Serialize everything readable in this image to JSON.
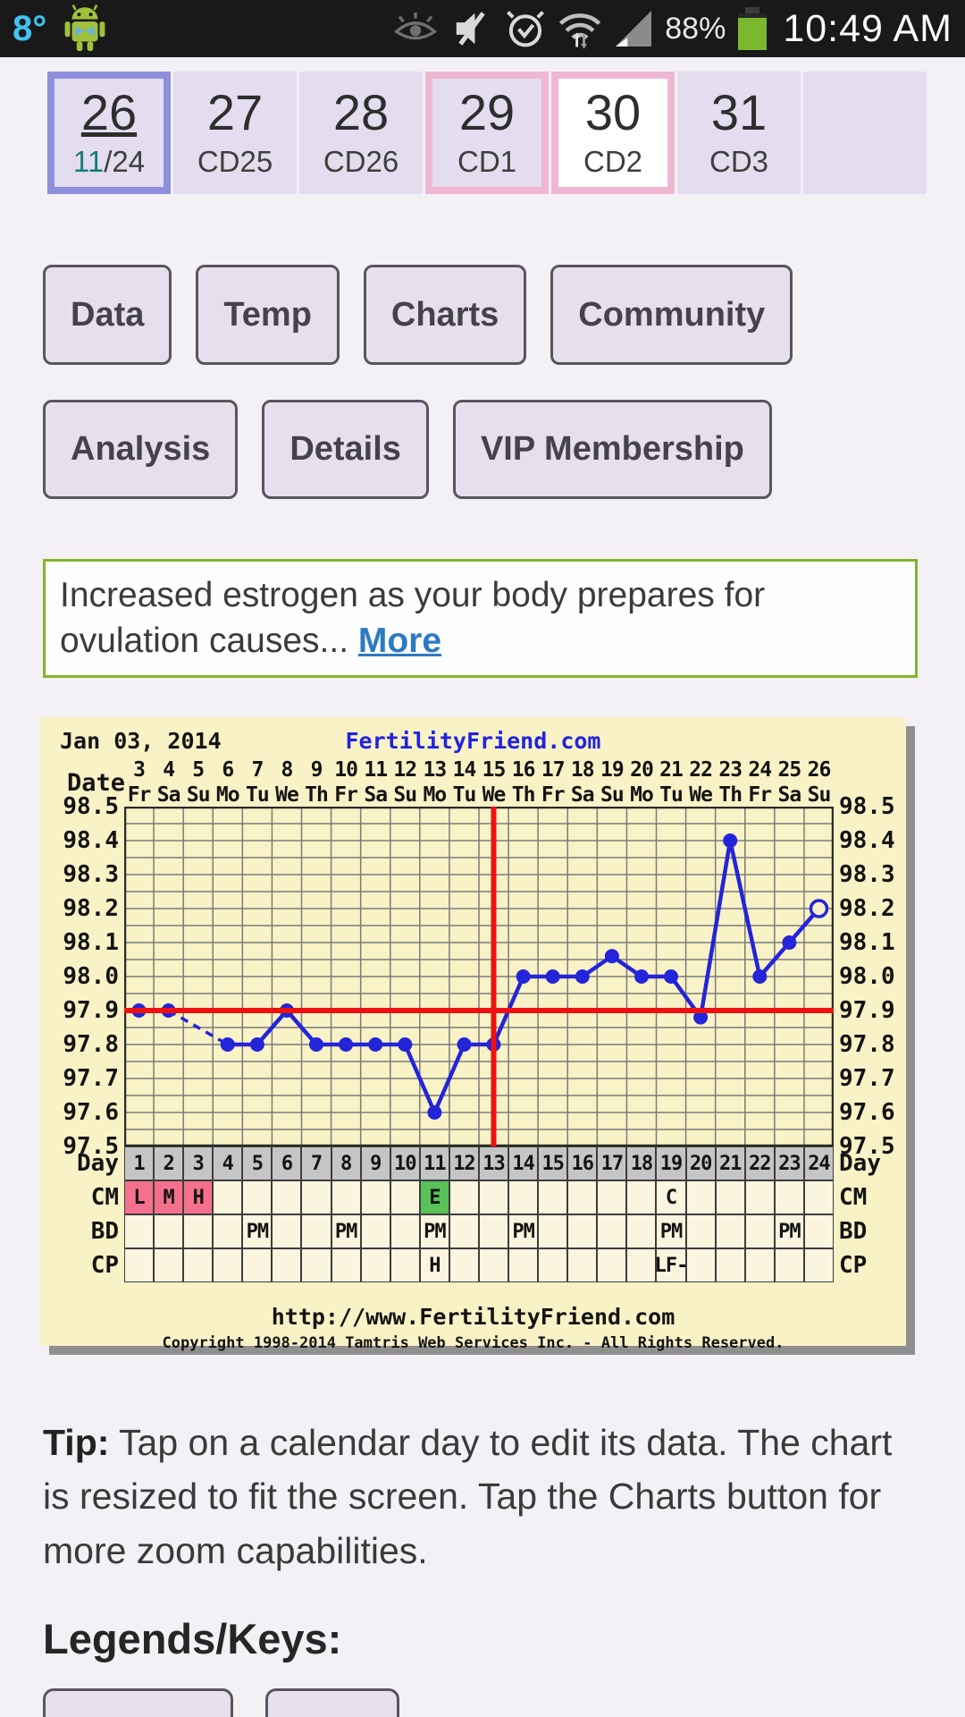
{
  "status_bar": {
    "temperature": "8°",
    "battery_percent": "88%",
    "time": "10:49 AM",
    "icons": [
      "android-robot",
      "smart-stay-eye",
      "mute",
      "alarm",
      "wifi-updown",
      "signal",
      "battery"
    ],
    "accent_blue": "#40c4f0",
    "android_green": "#9fc13c",
    "battery_green": "#7cb82f"
  },
  "calendar": {
    "days": [
      {
        "day": "26",
        "sub_parts": [
          {
            "text": "11",
            "highlight": true
          },
          {
            "text": "/24"
          }
        ],
        "style": "selected"
      },
      {
        "day": "27",
        "sub": "CD25",
        "style": "normal"
      },
      {
        "day": "28",
        "sub": "CD26",
        "style": "normal"
      },
      {
        "day": "29",
        "sub": "CD1",
        "style": "period"
      },
      {
        "day": "30",
        "sub": "CD2",
        "style": "today"
      },
      {
        "day": "31",
        "sub": "CD3",
        "style": "normal"
      },
      {
        "day": "",
        "sub": "",
        "style": "empty"
      }
    ],
    "selected_border": "#8f90dd",
    "period_border": "#efb7d3",
    "cell_bg": "#e4ddef",
    "highlight_color": "#157c78"
  },
  "nav": {
    "row1": [
      "Data",
      "Temp",
      "Charts",
      "Community"
    ],
    "row2": [
      "Analysis",
      "Details",
      "VIP Membership"
    ]
  },
  "info_box": {
    "text": "Increased estrogen as your body prepares for ovulation causes... ",
    "link_label": "More",
    "border_color": "#84b32a",
    "link_color": "#2d7ac2"
  },
  "chart_data": {
    "type": "line",
    "title_left": "Jan 03, 2014",
    "title_center": "FertilityFriend.com",
    "date_axis_label": "Date",
    "dates": [
      3,
      4,
      5,
      6,
      7,
      8,
      9,
      10,
      11,
      12,
      13,
      14,
      15,
      16,
      17,
      18,
      19,
      20,
      21,
      22,
      23,
      24,
      25,
      26
    ],
    "weekdays": [
      "Fr",
      "Sa",
      "Su",
      "Mo",
      "Tu",
      "We",
      "Th",
      "Fr",
      "Sa",
      "Su",
      "Mo",
      "Tu",
      "We",
      "Th",
      "Fr",
      "Sa",
      "Su",
      "Mo",
      "Tu",
      "We",
      "Th",
      "Fr",
      "Sa",
      "Su"
    ],
    "days": [
      1,
      2,
      3,
      4,
      5,
      6,
      7,
      8,
      9,
      10,
      11,
      12,
      13,
      14,
      15,
      16,
      17,
      18,
      19,
      20,
      21,
      22,
      23,
      24
    ],
    "temps": [
      97.9,
      97.9,
      null,
      97.8,
      97.8,
      97.9,
      97.8,
      97.8,
      97.8,
      97.8,
      97.6,
      97.8,
      97.8,
      98.0,
      98.0,
      98.0,
      98.06,
      98.0,
      98.0,
      97.88,
      98.4,
      98.0,
      98.1,
      98.2
    ],
    "missing_days": [
      3
    ],
    "last_point_style": "open-circle",
    "ylim": [
      97.5,
      98.5
    ],
    "y_ticks": [
      "98.5",
      "98.4",
      "98.3",
      "98.2",
      "98.1",
      "98.0",
      "97.9",
      "97.8",
      "97.7",
      "97.6",
      "97.5"
    ],
    "coverline_temp": 97.9,
    "ovulation_line_day": 13,
    "row_labels": [
      "Day",
      "CM",
      "BD",
      "CP"
    ],
    "cm_row": {
      "1": {
        "text": "L",
        "bg": "#f4708c"
      },
      "2": {
        "text": "M",
        "bg": "#f4708c"
      },
      "3": {
        "text": "H",
        "bg": "#f4708c"
      },
      "11": {
        "text": "E",
        "bg": "#58c158"
      },
      "19": {
        "text": "C",
        "bg": ""
      }
    },
    "bd_row": {
      "5": "PM",
      "8": "PM",
      "11": "PM",
      "14": "PM",
      "19": "PM",
      "23": "PM"
    },
    "cp_row": {
      "11": "H",
      "19": "LF-"
    },
    "footer_url": "http://www.FertilityFriend.com",
    "footer_copyright": "Copyright 1998-2014 Tamtris Web Services Inc. - All Rights Reserved.",
    "colors": {
      "background": "#f9f2c6",
      "grid": "#7b7b7b",
      "line": "#2424d8",
      "reference_lines": "#ee1111",
      "day_row_bg": "#c5c5c5",
      "cell_bg": "#fbf5df"
    }
  },
  "tip": {
    "label": "Tip:",
    "text": " Tap on a calendar day to edit its data. The chart is resized to fit the screen. Tap the Charts button for more zoom capabilities."
  },
  "legends_heading": "Legends/Keys:"
}
